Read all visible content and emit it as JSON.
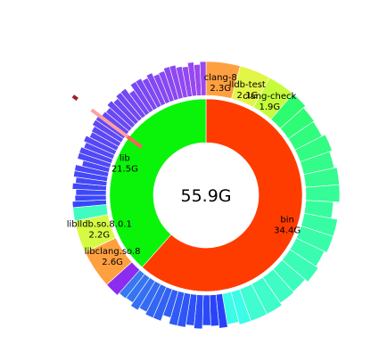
{
  "chart_data": {
    "type": "sunburst",
    "center_label": "55.9G",
    "inner_ring": [
      {
        "name": "bin",
        "value": 34.4,
        "value_label": "34.4G",
        "color": "#ff3c00"
      },
      {
        "name": "lib",
        "value": 21.5,
        "value_label": "21.5G",
        "color": "#0af40a"
      }
    ],
    "outer_ring": [
      {
        "parent": "bin",
        "name": "clang-8",
        "value": 2.3,
        "value_label": "2.3G",
        "color": "#ffa040"
      },
      {
        "parent": "bin",
        "name": "lldb-test",
        "value": 2.1,
        "value_label": "2.1G",
        "color": "#e2f648"
      },
      {
        "parent": "bin",
        "name": "clang-check",
        "value": 1.9,
        "value_label": "1.9G",
        "color": "#c4fc3c"
      },
      {
        "parent": "bin",
        "name": "",
        "value": 18.6,
        "color": "#2efc70",
        "gradient_to": "#40fcd0",
        "slices": 16
      },
      {
        "parent": "bin",
        "name": "",
        "value": 1.6,
        "color": "#3cfce8",
        "slices": 2
      },
      {
        "parent": "bin",
        "name": "",
        "value": 7.9,
        "color": "#2840f8",
        "gradient_to": "#3878f0",
        "slices": 14
      },
      {
        "parent": "lib",
        "name": "",
        "value": 1.0,
        "color": "#8c2cf0",
        "slices": 1
      },
      {
        "parent": "lib",
        "name": "libclang.so.8",
        "value": 2.6,
        "value_label": "2.6G",
        "color": "#ffa040"
      },
      {
        "parent": "lib",
        "name": "liblldb.so.8.0.1",
        "value": 2.2,
        "value_label": "2.2G",
        "color": "#d6fa44"
      },
      {
        "parent": "lib",
        "name": "",
        "value": 0.9,
        "color": "#40fcc0",
        "slices": 1
      },
      {
        "parent": "lib",
        "name": "",
        "value": 14.8,
        "color": "#3848f8",
        "gradient_to": "#9c48f0",
        "slices": 36
      }
    ]
  }
}
